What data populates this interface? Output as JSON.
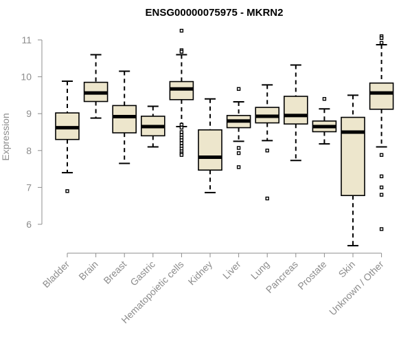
{
  "chart_data": {
    "type": "boxplot",
    "title": "ENSG00000075975 - MKRN2",
    "xlabel": "",
    "ylabel": "Expression",
    "ylim": [
      5.3,
      11.3
    ],
    "yticks": [
      6,
      7,
      8,
      9,
      10,
      11
    ],
    "categories": [
      "Bladder",
      "Brain",
      "Breast",
      "Gastric",
      "Hematopoietic cells",
      "Kidney",
      "Liver",
      "Lung",
      "Pancreas",
      "Prostate",
      "Skin",
      "Unknown / Other"
    ],
    "box_fill": "#ede6cc",
    "series": [
      {
        "name": "Bladder",
        "min": 7.4,
        "q1": 8.3,
        "median": 8.62,
        "q3": 9.02,
        "max": 9.88,
        "outliers": [
          6.9
        ]
      },
      {
        "name": "Brain",
        "min": 8.88,
        "q1": 9.33,
        "median": 9.56,
        "q3": 9.85,
        "max": 10.6,
        "outliers": []
      },
      {
        "name": "Breast",
        "min": 7.65,
        "q1": 8.48,
        "median": 8.92,
        "q3": 9.22,
        "max": 10.15,
        "outliers": []
      },
      {
        "name": "Gastric",
        "min": 8.1,
        "q1": 8.4,
        "median": 8.65,
        "q3": 8.93,
        "max": 9.2,
        "outliers": []
      },
      {
        "name": "Hematopoietic cells",
        "min": 8.65,
        "q1": 9.38,
        "median": 9.67,
        "q3": 9.87,
        "max": 10.6,
        "outliers": [
          11.25,
          10.72,
          10.68,
          8.7,
          8.62,
          8.5,
          8.42,
          8.35,
          8.28,
          8.2,
          8.12,
          8.05,
          7.98,
          7.92,
          7.88
        ]
      },
      {
        "name": "Kidney",
        "min": 6.86,
        "q1": 7.47,
        "median": 7.82,
        "q3": 8.56,
        "max": 9.4,
        "outliers": []
      },
      {
        "name": "Liver",
        "min": 8.25,
        "q1": 8.62,
        "median": 8.8,
        "q3": 8.95,
        "max": 9.32,
        "outliers": [
          9.67,
          8.07,
          7.93,
          7.55
        ]
      },
      {
        "name": "Lung",
        "min": 8.27,
        "q1": 8.75,
        "median": 8.93,
        "q3": 9.17,
        "max": 9.78,
        "outliers": [
          8.0,
          6.7
        ]
      },
      {
        "name": "Pancreas",
        "min": 7.73,
        "q1": 8.72,
        "median": 8.95,
        "q3": 9.47,
        "max": 10.32,
        "outliers": []
      },
      {
        "name": "Prostate",
        "min": 8.18,
        "q1": 8.51,
        "median": 8.65,
        "q3": 8.8,
        "max": 9.13,
        "outliers": [
          9.4
        ]
      },
      {
        "name": "Skin",
        "min": 5.42,
        "q1": 6.78,
        "median": 8.5,
        "q3": 8.9,
        "max": 9.5,
        "outliers": []
      },
      {
        "name": "Unknown / Other",
        "min": 8.1,
        "q1": 9.12,
        "median": 9.56,
        "q3": 9.83,
        "max": 10.87,
        "outliers": [
          11.1,
          11.05,
          10.92,
          7.88,
          7.3,
          7.0,
          6.8,
          5.87
        ]
      }
    ]
  }
}
